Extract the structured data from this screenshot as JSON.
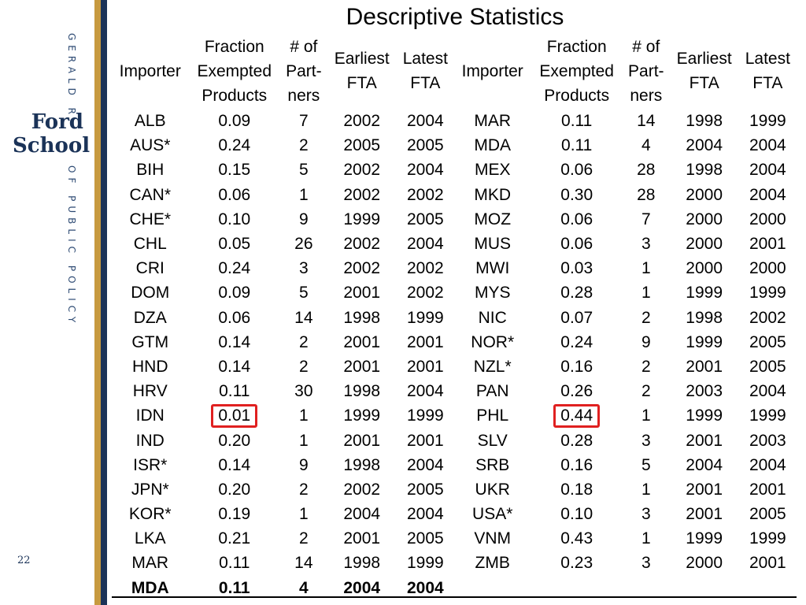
{
  "sidebar": {
    "top_text": "GERALD R.",
    "logo_line1": "Ford",
    "logo_line2": "School",
    "bottom_text": "OF PUBLIC POLICY",
    "page_number": "22"
  },
  "title": "Descriptive Statistics",
  "headers": {
    "importer": "Importer",
    "fraction": [
      "Fraction",
      "Exempted",
      "Products"
    ],
    "partners": [
      "# of",
      "Part-",
      "ners"
    ],
    "earliest": [
      "Earliest",
      "FTA"
    ],
    "latest": [
      "Latest",
      "FTA"
    ]
  },
  "left_rows": [
    {
      "importer": "ALB",
      "fraction": "0.09",
      "partners": "7",
      "earliest": "2002",
      "latest": "2004"
    },
    {
      "importer": "AUS*",
      "fraction": "0.24",
      "partners": "2",
      "earliest": "2005",
      "latest": "2005"
    },
    {
      "importer": "BIH",
      "fraction": "0.15",
      "partners": "5",
      "earliest": "2002",
      "latest": "2004"
    },
    {
      "importer": "CAN*",
      "fraction": "0.06",
      "partners": "1",
      "earliest": "2002",
      "latest": "2002"
    },
    {
      "importer": "CHE*",
      "fraction": "0.10",
      "partners": "9",
      "earliest": "1999",
      "latest": "2005"
    },
    {
      "importer": "CHL",
      "fraction": "0.05",
      "partners": "26",
      "earliest": "2002",
      "latest": "2004"
    },
    {
      "importer": "CRI",
      "fraction": "0.24",
      "partners": "3",
      "earliest": "2002",
      "latest": "2002"
    },
    {
      "importer": "DOM",
      "fraction": "0.09",
      "partners": "5",
      "earliest": "2001",
      "latest": "2002"
    },
    {
      "importer": "DZA",
      "fraction": "0.06",
      "partners": "14",
      "earliest": "1998",
      "latest": "1999"
    },
    {
      "importer": "GTM",
      "fraction": "0.14",
      "partners": "2",
      "earliest": "2001",
      "latest": "2001"
    },
    {
      "importer": "HND",
      "fraction": "0.14",
      "partners": "2",
      "earliest": "2001",
      "latest": "2001"
    },
    {
      "importer": "HRV",
      "fraction": "0.11",
      "partners": "30",
      "earliest": "1998",
      "latest": "2004"
    },
    {
      "importer": "IDN",
      "fraction": "0.01",
      "partners": "1",
      "earliest": "1999",
      "latest": "1999",
      "highlight": true
    },
    {
      "importer": "IND",
      "fraction": "0.20",
      "partners": "1",
      "earliest": "2001",
      "latest": "2001"
    },
    {
      "importer": "ISR*",
      "fraction": "0.14",
      "partners": "9",
      "earliest": "1998",
      "latest": "2004"
    },
    {
      "importer": "JPN*",
      "fraction": "0.20",
      "partners": "2",
      "earliest": "2002",
      "latest": "2005"
    },
    {
      "importer": "KOR*",
      "fraction": "0.19",
      "partners": "1",
      "earliest": "2004",
      "latest": "2004"
    },
    {
      "importer": "LKA",
      "fraction": "0.21",
      "partners": "2",
      "earliest": "2001",
      "latest": "2005"
    },
    {
      "importer": "MAR",
      "fraction": "0.11",
      "partners": "14",
      "earliest": "1998",
      "latest": "1999"
    },
    {
      "importer": "MDA",
      "fraction": "0.11",
      "partners": "4",
      "earliest": "2004",
      "latest": "2004",
      "bold": true
    }
  ],
  "right_rows": [
    {
      "importer": "MAR",
      "fraction": "0.11",
      "partners": "14",
      "earliest": "1998",
      "latest": "1999"
    },
    {
      "importer": "MDA",
      "fraction": "0.11",
      "partners": "4",
      "earliest": "2004",
      "latest": "2004"
    },
    {
      "importer": "MEX",
      "fraction": "0.06",
      "partners": "28",
      "earliest": "1998",
      "latest": "2004"
    },
    {
      "importer": "MKD",
      "fraction": "0.30",
      "partners": "28",
      "earliest": "2000",
      "latest": "2004"
    },
    {
      "importer": "MOZ",
      "fraction": "0.06",
      "partners": "7",
      "earliest": "2000",
      "latest": "2000"
    },
    {
      "importer": "MUS",
      "fraction": "0.06",
      "partners": "3",
      "earliest": "2000",
      "latest": "2001"
    },
    {
      "importer": "MWI",
      "fraction": "0.03",
      "partners": "1",
      "earliest": "2000",
      "latest": "2000"
    },
    {
      "importer": "MYS",
      "fraction": "0.28",
      "partners": "1",
      "earliest": "1999",
      "latest": "1999"
    },
    {
      "importer": "NIC",
      "fraction": "0.07",
      "partners": "2",
      "earliest": "1998",
      "latest": "2002"
    },
    {
      "importer": "NOR*",
      "fraction": "0.24",
      "partners": "9",
      "earliest": "1999",
      "latest": "2005"
    },
    {
      "importer": "NZL*",
      "fraction": "0.16",
      "partners": "2",
      "earliest": "2001",
      "latest": "2005"
    },
    {
      "importer": "PAN",
      "fraction": "0.26",
      "partners": "2",
      "earliest": "2003",
      "latest": "2004"
    },
    {
      "importer": "PHL",
      "fraction": "0.44",
      "partners": "1",
      "earliest": "1999",
      "latest": "1999",
      "highlight": true
    },
    {
      "importer": "SLV",
      "fraction": "0.28",
      "partners": "3",
      "earliest": "2001",
      "latest": "2003"
    },
    {
      "importer": "SRB",
      "fraction": "0.16",
      "partners": "5",
      "earliest": "2004",
      "latest": "2004"
    },
    {
      "importer": "UKR",
      "fraction": "0.18",
      "partners": "1",
      "earliest": "2001",
      "latest": "2001"
    },
    {
      "importer": "USA*",
      "fraction": "0.10",
      "partners": "3",
      "earliest": "2001",
      "latest": "2005"
    },
    {
      "importer": "VNM",
      "fraction": "0.43",
      "partners": "1",
      "earliest": "1999",
      "latest": "1999"
    },
    {
      "importer": "ZMB",
      "fraction": "0.23",
      "partners": "3",
      "earliest": "2000",
      "latest": "2001"
    }
  ],
  "colors": {
    "highlight_border": "#e02020",
    "sidebar_navy": "#1b3358",
    "sidebar_gold": "#c79a3f"
  }
}
